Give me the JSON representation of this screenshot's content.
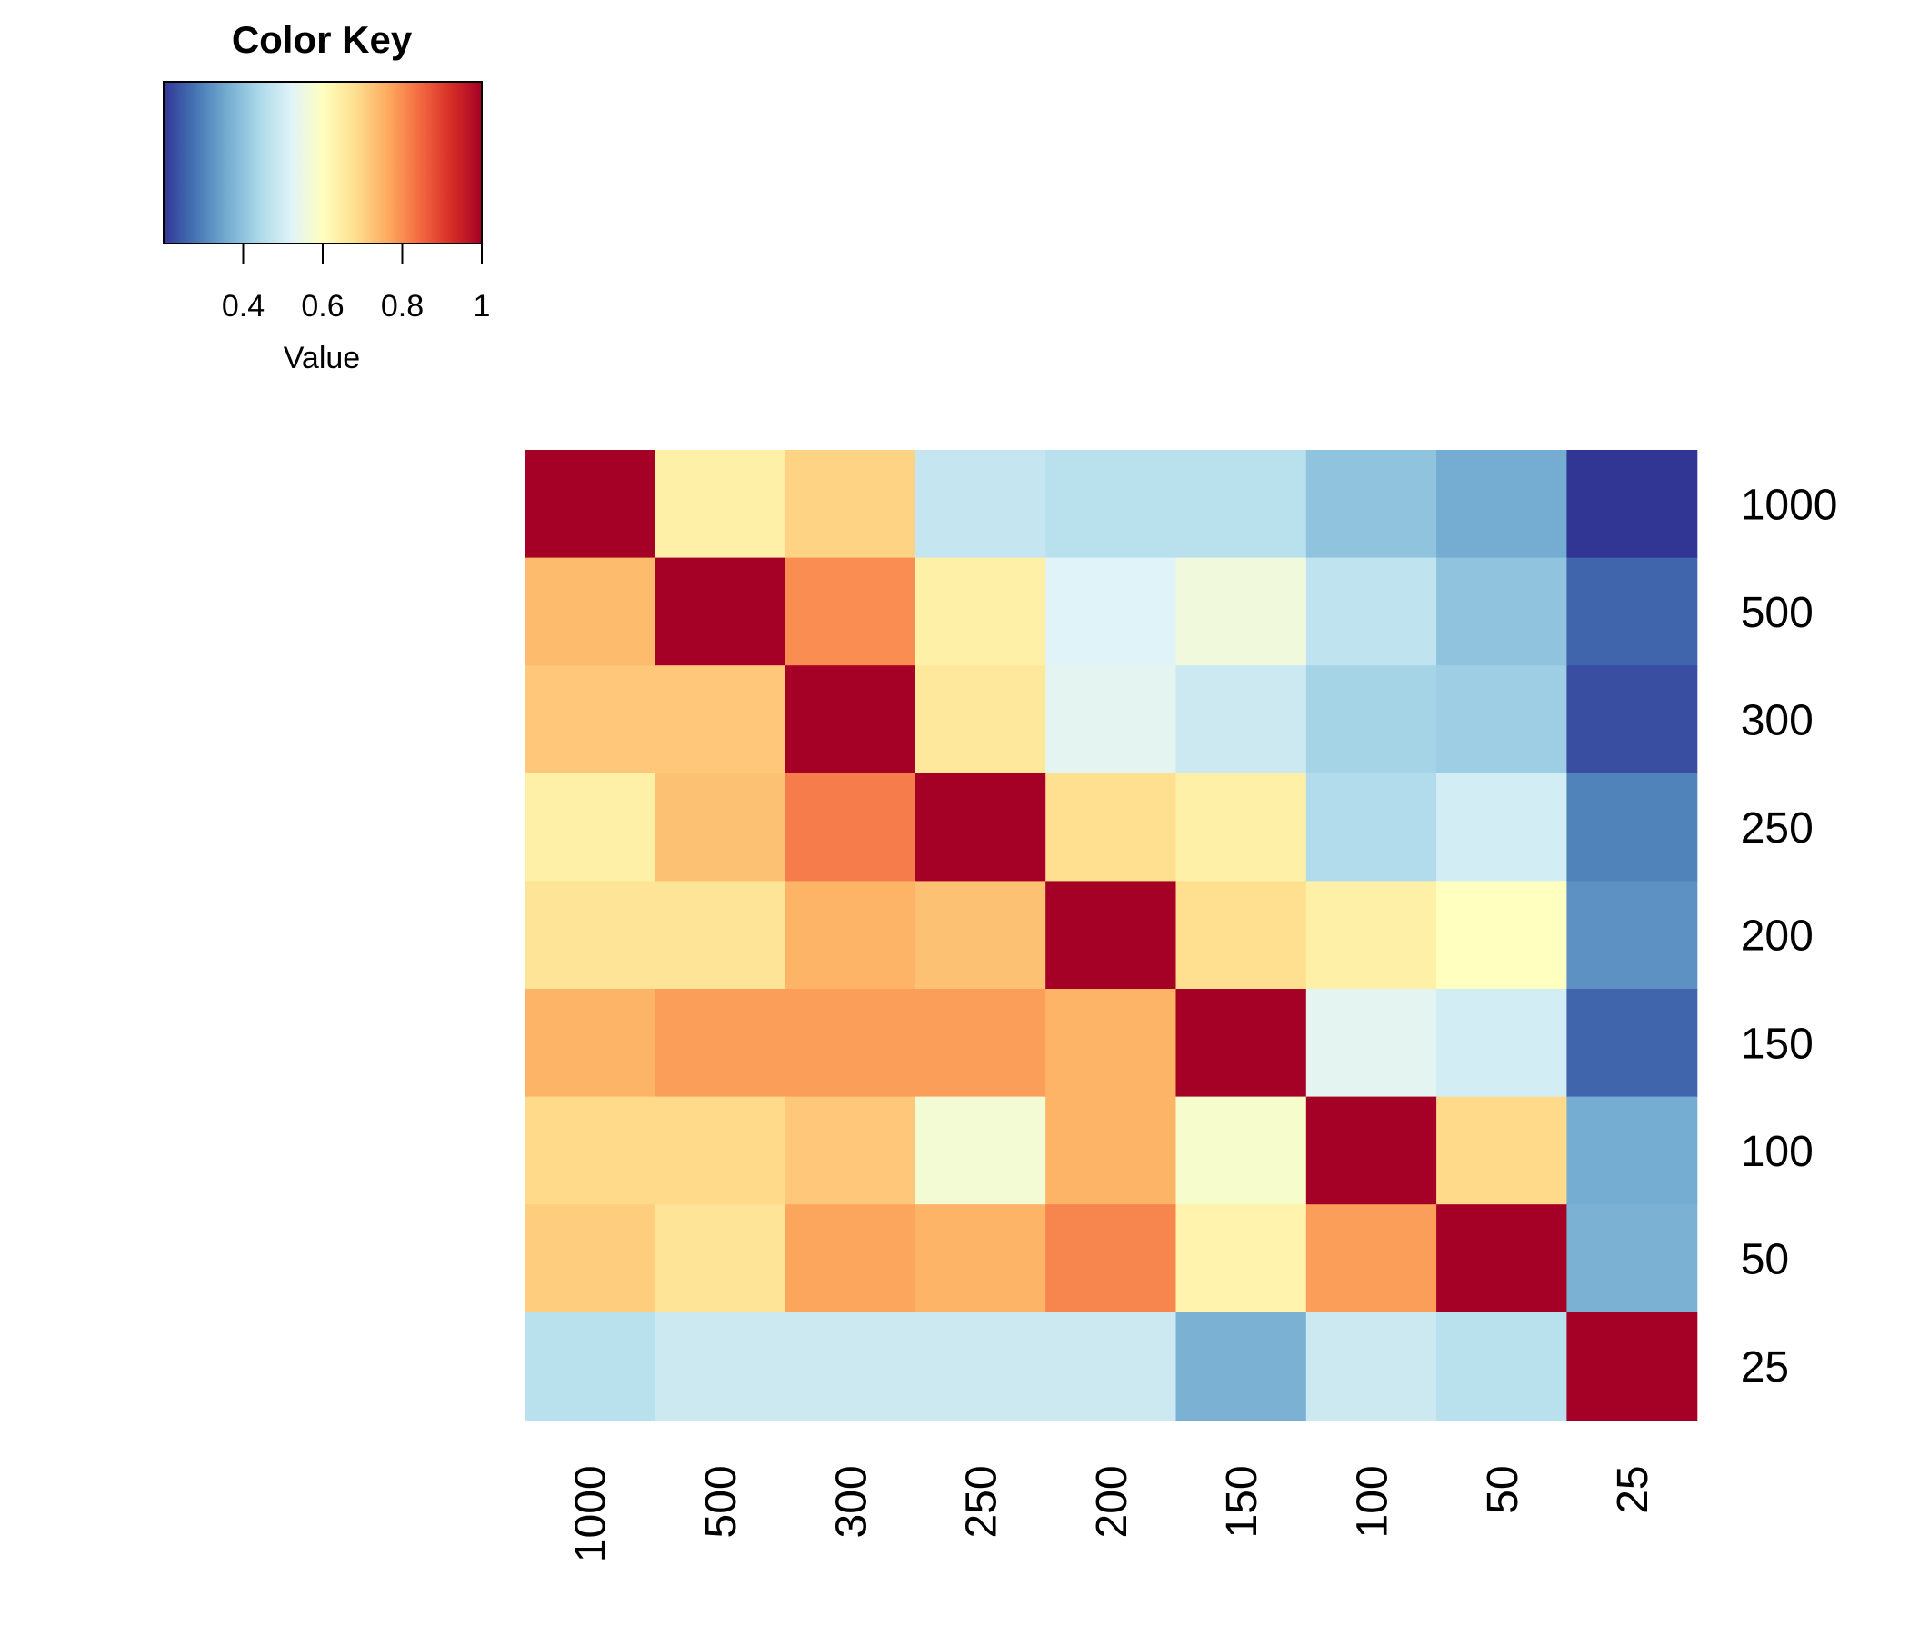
{
  "chart_data": {
    "type": "heatmap",
    "row_labels": [
      "1000",
      "500",
      "300",
      "250",
      "200",
      "150",
      "100",
      "50",
      "25"
    ],
    "col_labels": [
      "1000",
      "500",
      "300",
      "250",
      "200",
      "150",
      "100",
      "50",
      "25"
    ],
    "values": [
      [
        1.0,
        0.64,
        0.7,
        0.48,
        0.46,
        0.46,
        0.4,
        0.36,
        0.2
      ],
      [
        0.74,
        1.0,
        0.8,
        0.64,
        0.52,
        0.56,
        0.47,
        0.4,
        0.26
      ],
      [
        0.72,
        0.72,
        1.0,
        0.66,
        0.53,
        0.49,
        0.43,
        0.42,
        0.23
      ],
      [
        0.64,
        0.73,
        0.82,
        1.0,
        0.68,
        0.64,
        0.45,
        0.5,
        0.3
      ],
      [
        0.67,
        0.67,
        0.75,
        0.73,
        1.0,
        0.68,
        0.64,
        0.6,
        0.32
      ],
      [
        0.75,
        0.78,
        0.78,
        0.78,
        0.75,
        1.0,
        0.53,
        0.5,
        0.26
      ],
      [
        0.69,
        0.69,
        0.72,
        0.57,
        0.75,
        0.58,
        1.0,
        0.69,
        0.36
      ],
      [
        0.71,
        0.67,
        0.77,
        0.75,
        0.81,
        0.63,
        0.78,
        1.0,
        0.37
      ],
      [
        0.46,
        0.49,
        0.49,
        0.49,
        0.49,
        0.37,
        0.49,
        0.46,
        1.0
      ]
    ],
    "color_key": {
      "title": "Color Key",
      "xlabel": "Value",
      "ticks": [
        "0.4",
        "0.6",
        "0.8",
        "1"
      ],
      "tick_values": [
        0.4,
        0.6,
        0.8,
        1.0
      ],
      "range": [
        0.2,
        1.0
      ],
      "colors": [
        "#313695",
        "#4575b4",
        "#74add1",
        "#abd9e9",
        "#e0f3f8",
        "#ffffbf",
        "#fee090",
        "#fdae61",
        "#f46d43",
        "#d73027",
        "#a50026"
      ]
    }
  }
}
